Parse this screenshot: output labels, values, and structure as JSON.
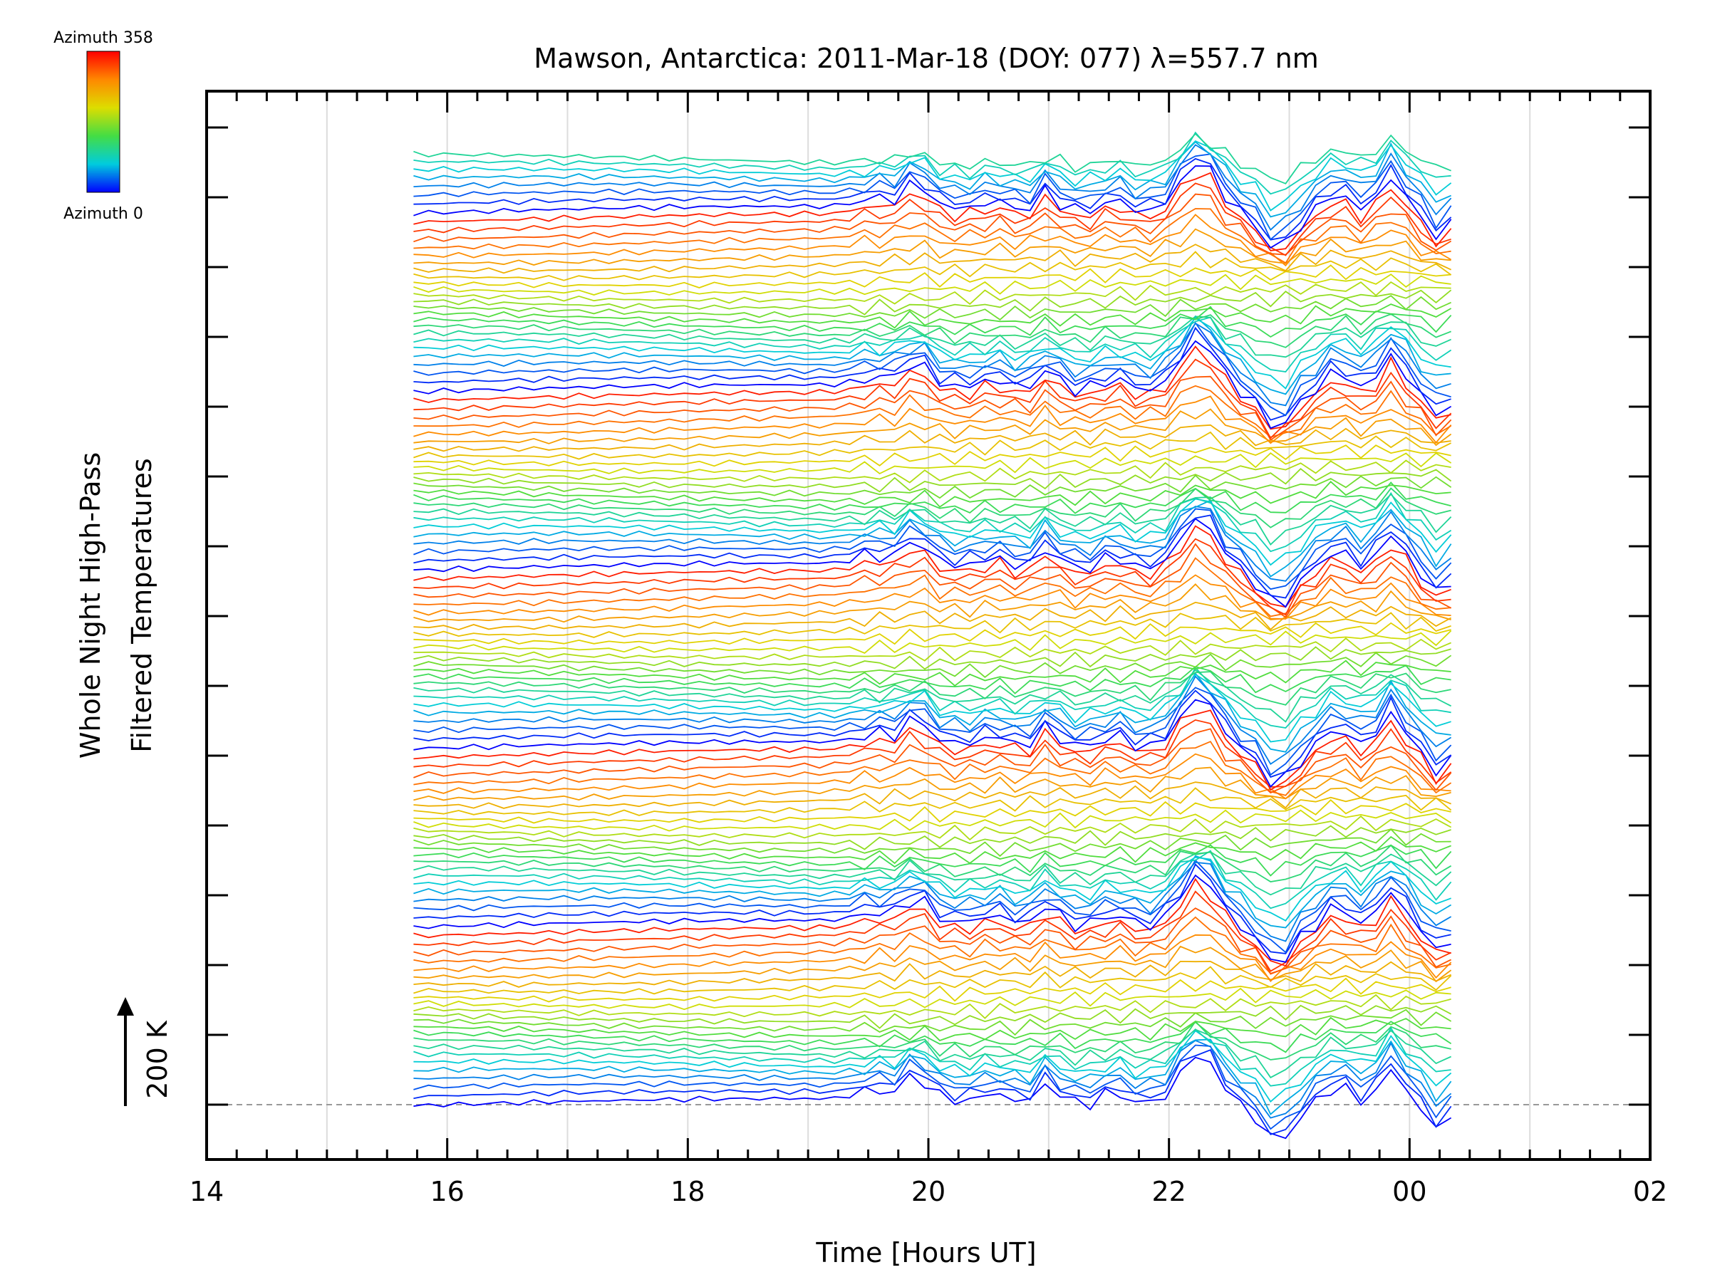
{
  "chart_data": {
    "type": "line",
    "title": "Mawson, Antarctica: 2011-Mar-18 (DOY: 077) λ=557.7 nm",
    "xlabel": "Time [Hours UT]",
    "ylabel_line1": "Whole Night High-Pass",
    "ylabel_line2": "Filtered Temperatures",
    "scale_marker": "200 K",
    "colorbar": {
      "top_label": "Azimuth 358",
      "bottom_label": "Azimuth 0",
      "min_azimuth": 0,
      "max_azimuth": 358,
      "colors": [
        "#ff0000",
        "#ff8800",
        "#dddd00",
        "#44dd44",
        "#00ccdd",
        "#0000ff"
      ]
    },
    "x_ticks": [
      "14",
      "16",
      "18",
      "20",
      "22",
      "00",
      "02"
    ],
    "x_tick_values": [
      14,
      16,
      18,
      20,
      22,
      24,
      26
    ],
    "xlim": [
      14,
      26
    ],
    "grid": "vertical",
    "zero_line": "dashed",
    "n_series": 128,
    "traces_per_sweep": 24,
    "time_range": [
      15.72,
      24.35
    ],
    "spacing_K": 20,
    "events": [
      {
        "t": 19.55,
        "amp": 0.35,
        "w": 0.2
      },
      {
        "t": 19.9,
        "amp": 1.0,
        "w": 0.14
      },
      {
        "t": 20.55,
        "amp": 0.35,
        "w": 0.12
      },
      {
        "t": 21.0,
        "amp": 0.85,
        "w": 0.1
      },
      {
        "t": 21.55,
        "amp": 0.5,
        "w": 0.14
      },
      {
        "t": 22.25,
        "amp": 2.2,
        "w": 0.22
      },
      {
        "t": 22.9,
        "amp": -1.4,
        "w": 0.17
      },
      {
        "t": 23.4,
        "amp": 1.0,
        "w": 0.17
      },
      {
        "t": 23.85,
        "amp": 1.7,
        "w": 0.15
      },
      {
        "t": 24.25,
        "amp": -0.8,
        "w": 0.1
      }
    ]
  }
}
